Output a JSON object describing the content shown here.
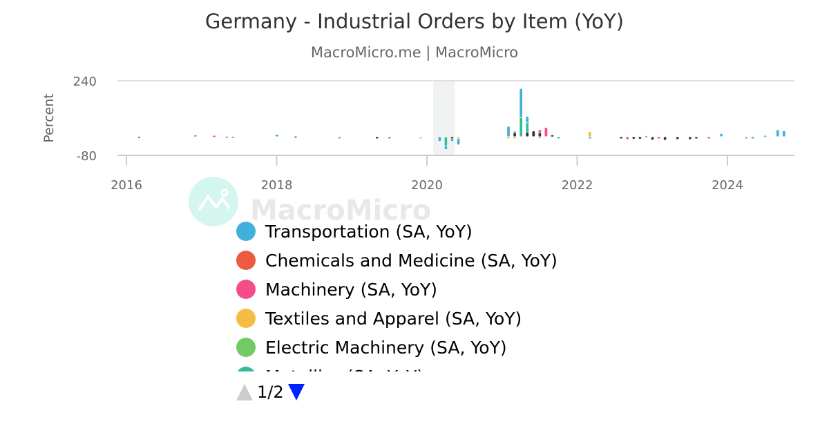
{
  "title": "Germany - Industrial Orders by Item (YoY)",
  "subtitle": "MacroMicro.me | MacroMicro",
  "watermark": "MacroMicro",
  "legend_pager": {
    "label": "1/2",
    "up_color": "#cccccc",
    "down_color": "#0022ff"
  },
  "chart_data": {
    "type": "bar",
    "title": "Germany - Industrial Orders by Item (YoY)",
    "ylabel": "Percent",
    "ylim": [
      -80,
      240
    ],
    "yticks": [
      "240",
      "-80"
    ],
    "yticks_values": [
      240,
      -80
    ],
    "xlim": [
      "2015-09",
      "2024-11"
    ],
    "xticks": [
      "2016",
      "2018",
      "2020",
      "2022",
      "2024"
    ],
    "shaded_range": [
      "2020-02",
      "2020-05"
    ],
    "legend_placement": "bottom",
    "series": [
      {
        "name": "Transportation (SA, YoY)",
        "color": "#41b0dc",
        "points": [
          [
            "2016-12",
            8
          ],
          [
            "2018-11",
            -3
          ],
          [
            "2020-03",
            -20
          ],
          [
            "2020-04",
            -55
          ],
          [
            "2020-06",
            -35
          ],
          [
            "2021-02",
            45
          ],
          [
            "2021-04",
            207
          ],
          [
            "2021-05",
            88
          ],
          [
            "2021-10",
            -4
          ],
          [
            "2022-03",
            -5
          ],
          [
            "2023-12",
            14
          ],
          [
            "2024-09",
            30
          ],
          [
            "2024-10",
            26
          ]
        ]
      },
      {
        "name": "Chemicals and Medicine (SA, YoY)",
        "color": "#ea5b42",
        "points": [
          [
            "2018-04",
            3
          ],
          [
            "2021-07",
            3
          ],
          [
            "2023-02",
            -6
          ]
        ]
      },
      {
        "name": "Machinery (SA, YoY)",
        "color": "#f44d89",
        "points": [
          [
            "2016-03",
            2
          ],
          [
            "2017-03",
            6
          ],
          [
            "2021-07",
            30
          ],
          [
            "2021-08",
            40
          ],
          [
            "2022-09",
            -12
          ],
          [
            "2023-10",
            -4
          ]
        ]
      },
      {
        "name": "Textiles and Apparel (SA, YoY)",
        "color": "#f6bb43",
        "points": [
          [
            "2019-12",
            -8
          ],
          [
            "2020-06",
            -6
          ],
          [
            "2021-02",
            -6
          ],
          [
            "2021-03",
            -5
          ],
          [
            "2022-03",
            22
          ]
        ]
      },
      {
        "name": "Electric Machinery (SA, YoY)",
        "color": "#72ca63",
        "points": [
          [
            "2017-05",
            2
          ],
          [
            "2017-06",
            2
          ],
          [
            "2021-03",
            12
          ],
          [
            "2021-09",
            8
          ],
          [
            "2022-12",
            5
          ],
          [
            "2024-04",
            -6
          ],
          [
            "2024-07",
            6
          ]
        ]
      },
      {
        "name": "Metallics (SA, YoY)",
        "color": "#34bb98",
        "points": [
          [
            "2018-01",
            10
          ],
          [
            "2019-07",
            -4
          ],
          [
            "2020-04",
            -40
          ],
          [
            "2020-05",
            -20
          ],
          [
            "2021-03",
            24
          ],
          [
            "2021-04",
            83
          ],
          [
            "2021-05",
            60
          ],
          [
            "2024-05",
            -4
          ]
        ]
      },
      {
        "name": "",
        "color": "#333333",
        "points": [
          [
            "2019-05",
            -3
          ],
          [
            "2020-05",
            -5
          ],
          [
            "2021-03",
            18
          ],
          [
            "2021-05",
            20
          ],
          [
            "2021-06",
            25
          ],
          [
            "2021-07",
            18
          ],
          [
            "2021-09",
            8
          ],
          [
            "2022-08",
            -8
          ],
          [
            "2022-10",
            -10
          ],
          [
            "2022-11",
            -10
          ],
          [
            "2023-01",
            -14
          ],
          [
            "2023-03",
            -15
          ],
          [
            "2023-05",
            -12
          ],
          [
            "2023-07",
            -12
          ],
          [
            "2023-08",
            -8
          ]
        ]
      }
    ]
  }
}
